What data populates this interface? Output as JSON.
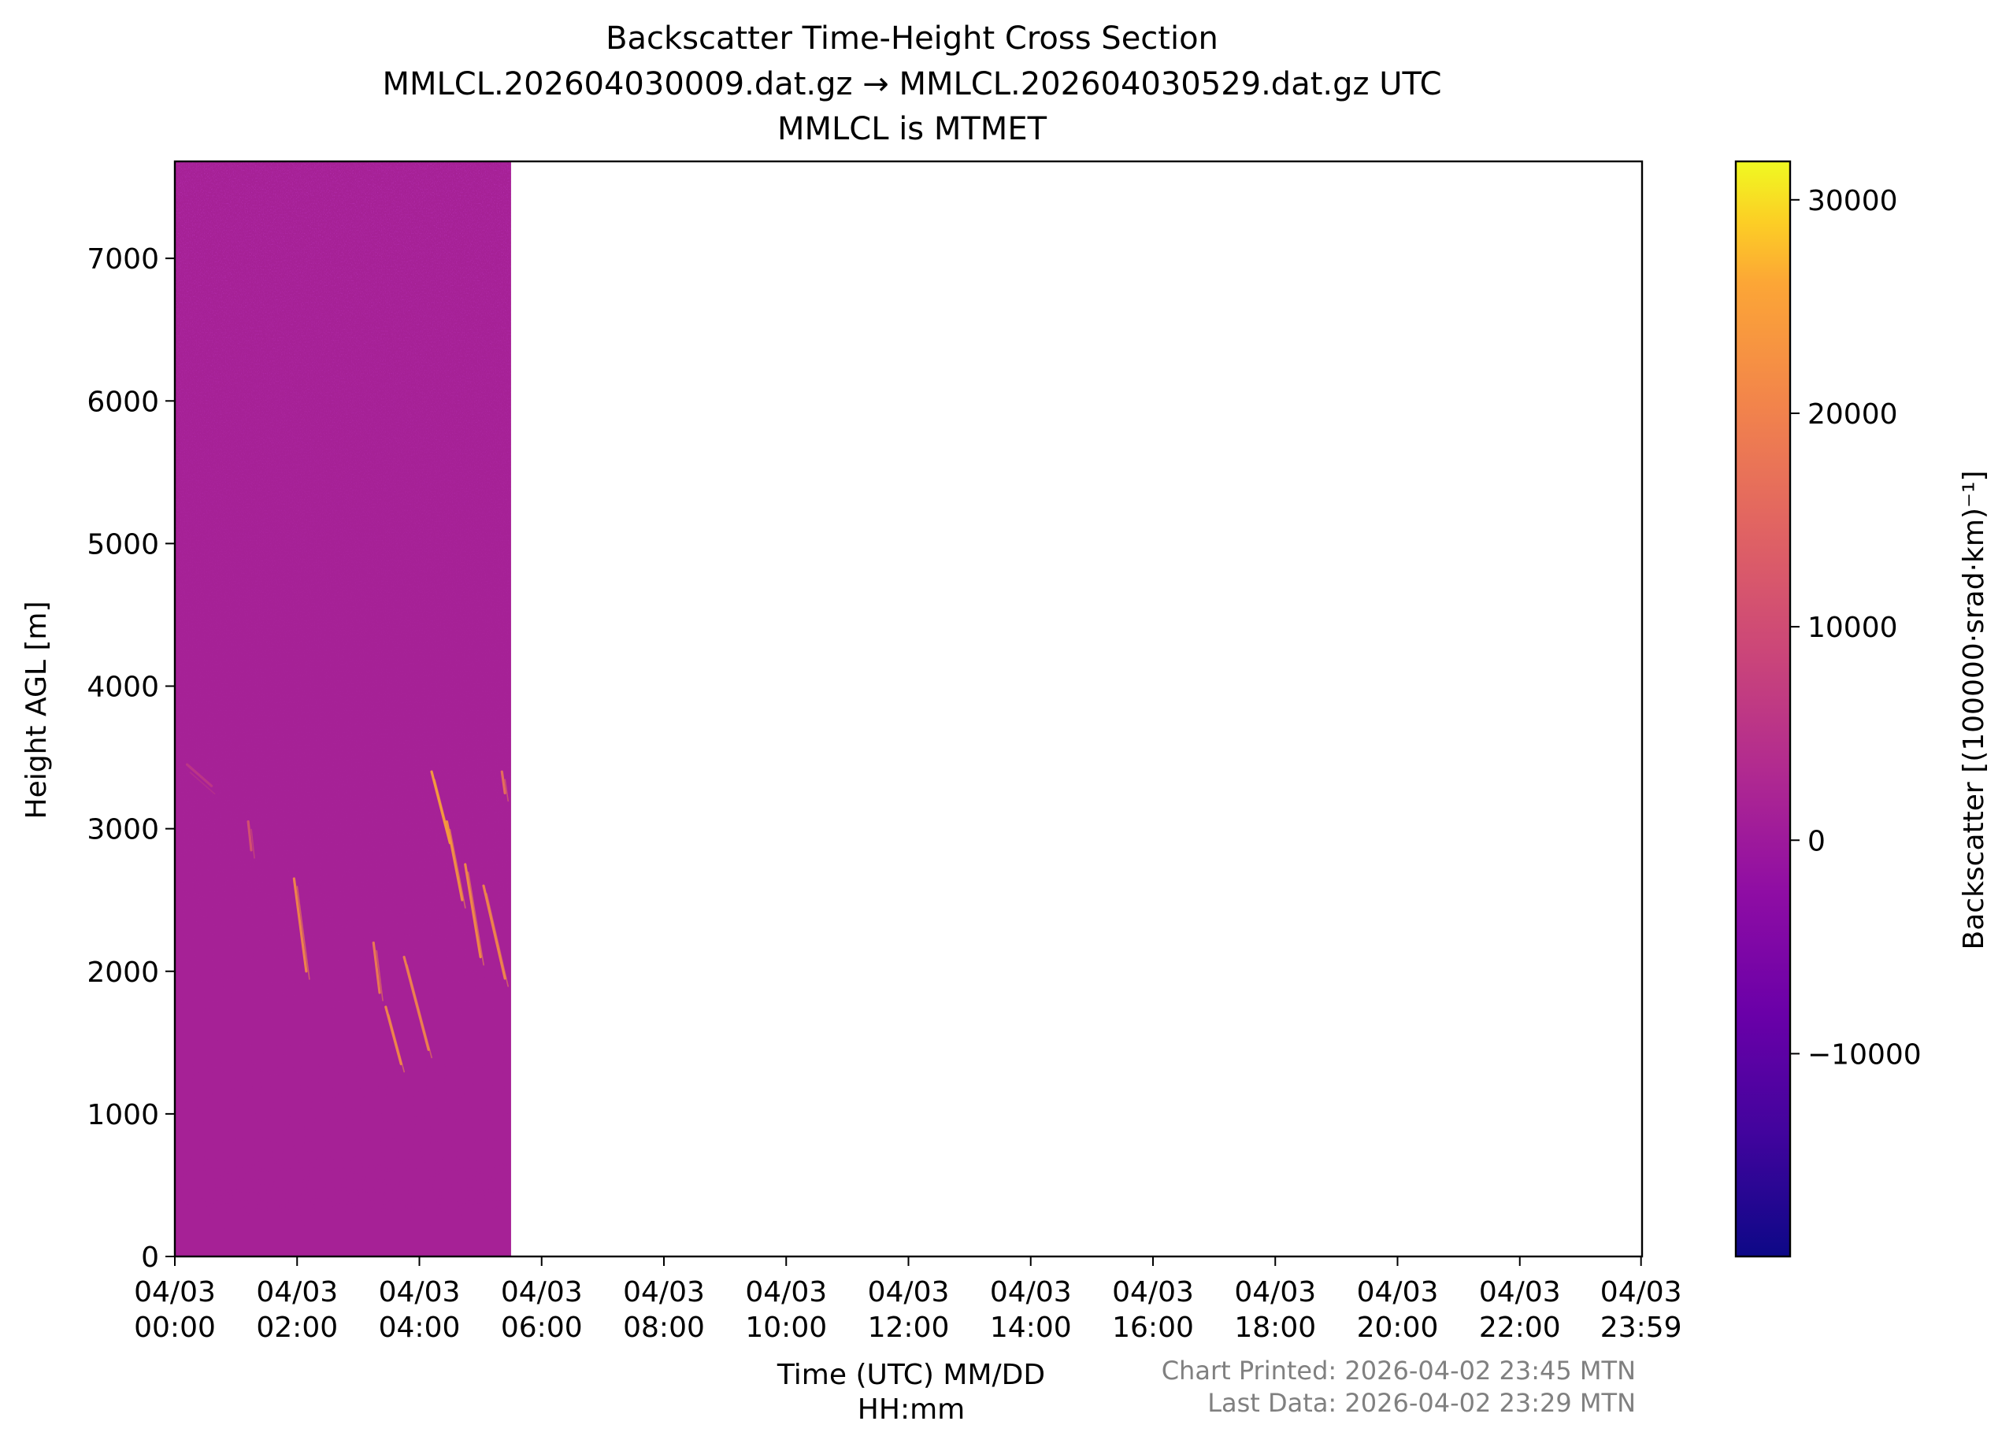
{
  "chart_data": {
    "type": "heatmap",
    "title": [
      "Backscatter Time-Height Cross Section",
      "MMLCL.202604030009.dat.gz → MMLCL.202604030529.dat.gz UTC",
      "MMLCL is MTMET"
    ],
    "xlabel": [
      "Time (UTC) MM/DD",
      "HH:mm"
    ],
    "ylabel": "Height AGL [m]",
    "x_range_hours": [
      0,
      24
    ],
    "x_ticks": [
      {
        "h": 0,
        "label": [
          "04/03",
          "00:00"
        ]
      },
      {
        "h": 2,
        "label": [
          "04/03",
          "02:00"
        ]
      },
      {
        "h": 4,
        "label": [
          "04/03",
          "04:00"
        ]
      },
      {
        "h": 6,
        "label": [
          "04/03",
          "06:00"
        ]
      },
      {
        "h": 8,
        "label": [
          "04/03",
          "08:00"
        ]
      },
      {
        "h": 10,
        "label": [
          "04/03",
          "10:00"
        ]
      },
      {
        "h": 12,
        "label": [
          "04/03",
          "12:00"
        ]
      },
      {
        "h": 14,
        "label": [
          "04/03",
          "14:00"
        ]
      },
      {
        "h": 16,
        "label": [
          "04/03",
          "16:00"
        ]
      },
      {
        "h": 18,
        "label": [
          "04/03",
          "18:00"
        ]
      },
      {
        "h": 20,
        "label": [
          "04/03",
          "20:00"
        ]
      },
      {
        "h": 22,
        "label": [
          "04/03",
          "22:00"
        ]
      },
      {
        "h": 23.983,
        "label": [
          "04/03",
          "23:59"
        ]
      }
    ],
    "ylim": [
      0,
      7680
    ],
    "y_ticks": [
      0,
      1000,
      2000,
      3000,
      4000,
      5000,
      6000,
      7000
    ],
    "data_extent_hours": [
      0,
      5.5
    ],
    "background_value": 1500,
    "colormap": "plasma",
    "colorbar": {
      "label": "Backscatter [(100000·srad·km)⁻¹]",
      "range": [
        -19500,
        31800
      ],
      "ticks": [
        -10000,
        0,
        10000,
        20000,
        30000
      ],
      "tick_labels": [
        "−10000",
        "0",
        "10000",
        "20000",
        "30000"
      ]
    },
    "cloud_features": [
      {
        "h0": 1.95,
        "z0": 2650,
        "h1": 2.15,
        "z1": 2000,
        "value": 22000
      },
      {
        "h0": 3.25,
        "z0": 2200,
        "h1": 3.35,
        "z1": 1850,
        "value": 20000
      },
      {
        "h0": 3.45,
        "z0": 1750,
        "h1": 3.7,
        "z1": 1350,
        "value": 22000
      },
      {
        "h0": 3.75,
        "z0": 2100,
        "h1": 4.15,
        "z1": 1450,
        "value": 21000
      },
      {
        "h0": 4.2,
        "z0": 3400,
        "h1": 4.5,
        "z1": 2900,
        "value": 26000
      },
      {
        "h0": 4.45,
        "z0": 3050,
        "h1": 4.7,
        "z1": 2500,
        "value": 24000
      },
      {
        "h0": 4.75,
        "z0": 2750,
        "h1": 5.0,
        "z1": 2100,
        "value": 23000
      },
      {
        "h0": 5.05,
        "z0": 2600,
        "h1": 5.4,
        "z1": 1950,
        "value": 22000
      },
      {
        "h0": 5.35,
        "z0": 3400,
        "h1": 5.4,
        "z1": 3250,
        "value": 18000
      },
      {
        "h0": 1.2,
        "z0": 3050,
        "h1": 1.25,
        "z1": 2850,
        "value": 12000
      },
      {
        "h0": 0.2,
        "z0": 3450,
        "h1": 0.6,
        "z1": 3300,
        "value": 6000
      }
    ],
    "footer": [
      "Chart Printed: 2026-04-02 23:45 MTN",
      "Last Data: 2026-04-02 23:29 MTN"
    ]
  }
}
